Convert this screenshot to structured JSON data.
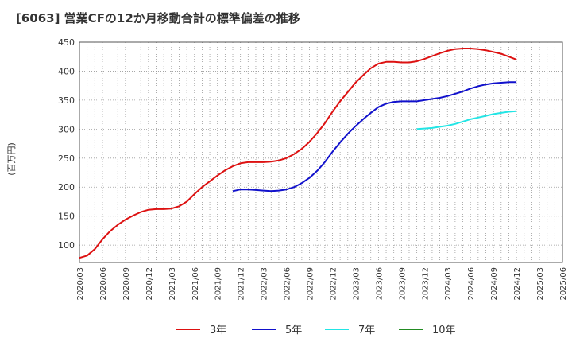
{
  "chart_data": {
    "type": "line",
    "title": "[6063]  営業CFの12か月移動合計の標準偏差の推移",
    "ylabel": "(百万円)",
    "ylim": [
      70,
      450
    ],
    "y_ticks": [
      100,
      150,
      200,
      250,
      300,
      350,
      400,
      450
    ],
    "x_ticks": [
      "2020/03",
      "2020/06",
      "2020/09",
      "2020/12",
      "2021/03",
      "2021/06",
      "2021/09",
      "2021/12",
      "2022/03",
      "2022/06",
      "2022/09",
      "2022/12",
      "2023/03",
      "2023/06",
      "2023/09",
      "2023/12",
      "2024/03",
      "2024/06",
      "2024/09",
      "2024/12",
      "2025/03",
      "2025/06"
    ],
    "grid": true,
    "legend_position": "bottom",
    "series": [
      {
        "name": "3年",
        "color": "#dd1111",
        "x": [
          "2020/03",
          "2020/04",
          "2020/05",
          "2020/06",
          "2020/07",
          "2020/08",
          "2020/09",
          "2020/10",
          "2020/11",
          "2020/12",
          "2021/01",
          "2021/02",
          "2021/03",
          "2021/04",
          "2021/05",
          "2021/06",
          "2021/07",
          "2021/08",
          "2021/09",
          "2021/10",
          "2021/11",
          "2021/12",
          "2022/01",
          "2022/02",
          "2022/03",
          "2022/04",
          "2022/05",
          "2022/06",
          "2022/07",
          "2022/08",
          "2022/09",
          "2022/10",
          "2022/11",
          "2022/12",
          "2023/01",
          "2023/02",
          "2023/03",
          "2023/04",
          "2023/05",
          "2023/06",
          "2023/07",
          "2023/08",
          "2023/09",
          "2023/10",
          "2023/11",
          "2023/12",
          "2024/01",
          "2024/02",
          "2024/03",
          "2024/04",
          "2024/05",
          "2024/06",
          "2024/07",
          "2024/08",
          "2024/09",
          "2024/10",
          "2024/11",
          "2024/12"
        ],
        "values": [
          78,
          82,
          93,
          110,
          124,
          135,
          144,
          151,
          157,
          161,
          162,
          162,
          163,
          167,
          175,
          188,
          200,
          210,
          220,
          229,
          236,
          241,
          243,
          243,
          243,
          244,
          246,
          250,
          257,
          266,
          278,
          293,
          310,
          330,
          348,
          364,
          380,
          393,
          405,
          413,
          416,
          416,
          415,
          415,
          417,
          421,
          426,
          431,
          435,
          438,
          439,
          439,
          438,
          436,
          433,
          430,
          425,
          420
        ]
      },
      {
        "name": "5年",
        "color": "#1111cc",
        "x": [
          "2021/11",
          "2021/12",
          "2022/01",
          "2022/02",
          "2022/03",
          "2022/04",
          "2022/05",
          "2022/06",
          "2022/07",
          "2022/08",
          "2022/09",
          "2022/10",
          "2022/11",
          "2022/12",
          "2023/01",
          "2023/02",
          "2023/03",
          "2023/04",
          "2023/05",
          "2023/06",
          "2023/07",
          "2023/08",
          "2023/09",
          "2023/10",
          "2023/11",
          "2023/12",
          "2024/01",
          "2024/02",
          "2024/03",
          "2024/04",
          "2024/05",
          "2024/06",
          "2024/07",
          "2024/08",
          "2024/09",
          "2024/10",
          "2024/11",
          "2024/12"
        ],
        "values": [
          193,
          196,
          196,
          195,
          194,
          193,
          194,
          196,
          200,
          207,
          216,
          228,
          243,
          261,
          277,
          292,
          305,
          317,
          328,
          338,
          344,
          347,
          348,
          348,
          348,
          350,
          352,
          354,
          357,
          361,
          365,
          370,
          374,
          377,
          379,
          380,
          381,
          381
        ]
      },
      {
        "name": "7年",
        "color": "#22e5e5",
        "x": [
          "2023/11",
          "2023/12",
          "2024/01",
          "2024/02",
          "2024/03",
          "2024/04",
          "2024/05",
          "2024/06",
          "2024/07",
          "2024/08",
          "2024/09",
          "2024/10",
          "2024/11",
          "2024/12"
        ],
        "values": [
          300,
          301,
          302,
          304,
          306,
          309,
          313,
          317,
          320,
          323,
          326,
          328,
          330,
          331
        ]
      },
      {
        "name": "10年",
        "color": "#228b22",
        "x": [],
        "values": []
      }
    ]
  }
}
